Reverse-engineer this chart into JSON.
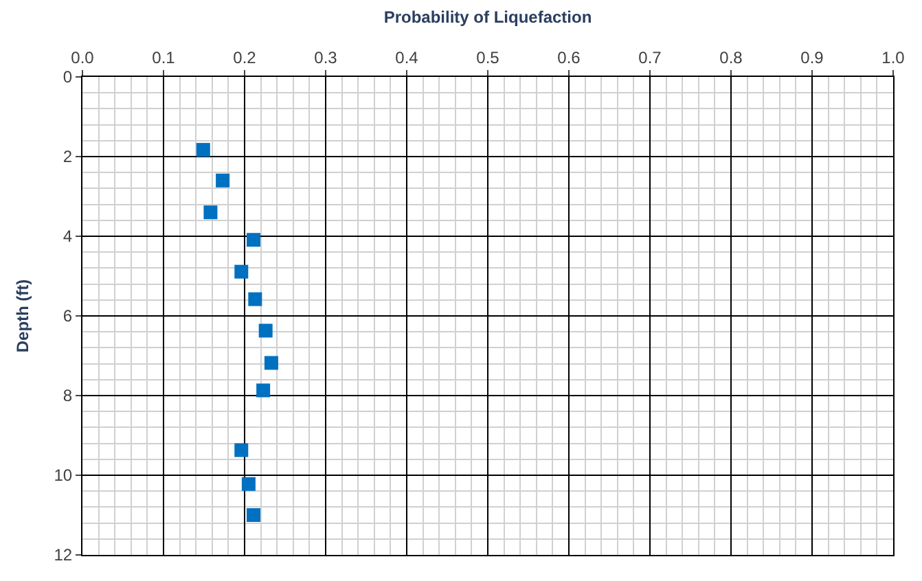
{
  "chart_data": {
    "type": "scatter",
    "xlabel": "Probability of Liquefaction",
    "ylabel": "Depth (ft)",
    "x": [
      0.149,
      0.173,
      0.158,
      0.211,
      0.196,
      0.213,
      0.226,
      0.233,
      0.223,
      0.196,
      0.205,
      0.211
    ],
    "series": [
      {
        "color": "#0070c0",
        "values": [
          1.83,
          2.6,
          3.4,
          4.09,
          4.89,
          5.58,
          6.37,
          7.18,
          7.87,
          9.37,
          10.22,
          11.0
        ]
      }
    ],
    "xlim": [
      0,
      1
    ],
    "xticks": [
      {
        "value": 0,
        "label": "0.0"
      },
      0.1,
      0.2,
      0.3,
      0.4,
      0.5,
      0.6,
      0.7,
      0.8,
      0.9,
      {
        "value": 1,
        "label": "1.0"
      }
    ],
    "ylim": [
      12,
      0
    ],
    "yticks": [
      0,
      2,
      4,
      6,
      8,
      10,
      12
    ],
    "grid": true,
    "marker": "square",
    "legend": false
  }
}
